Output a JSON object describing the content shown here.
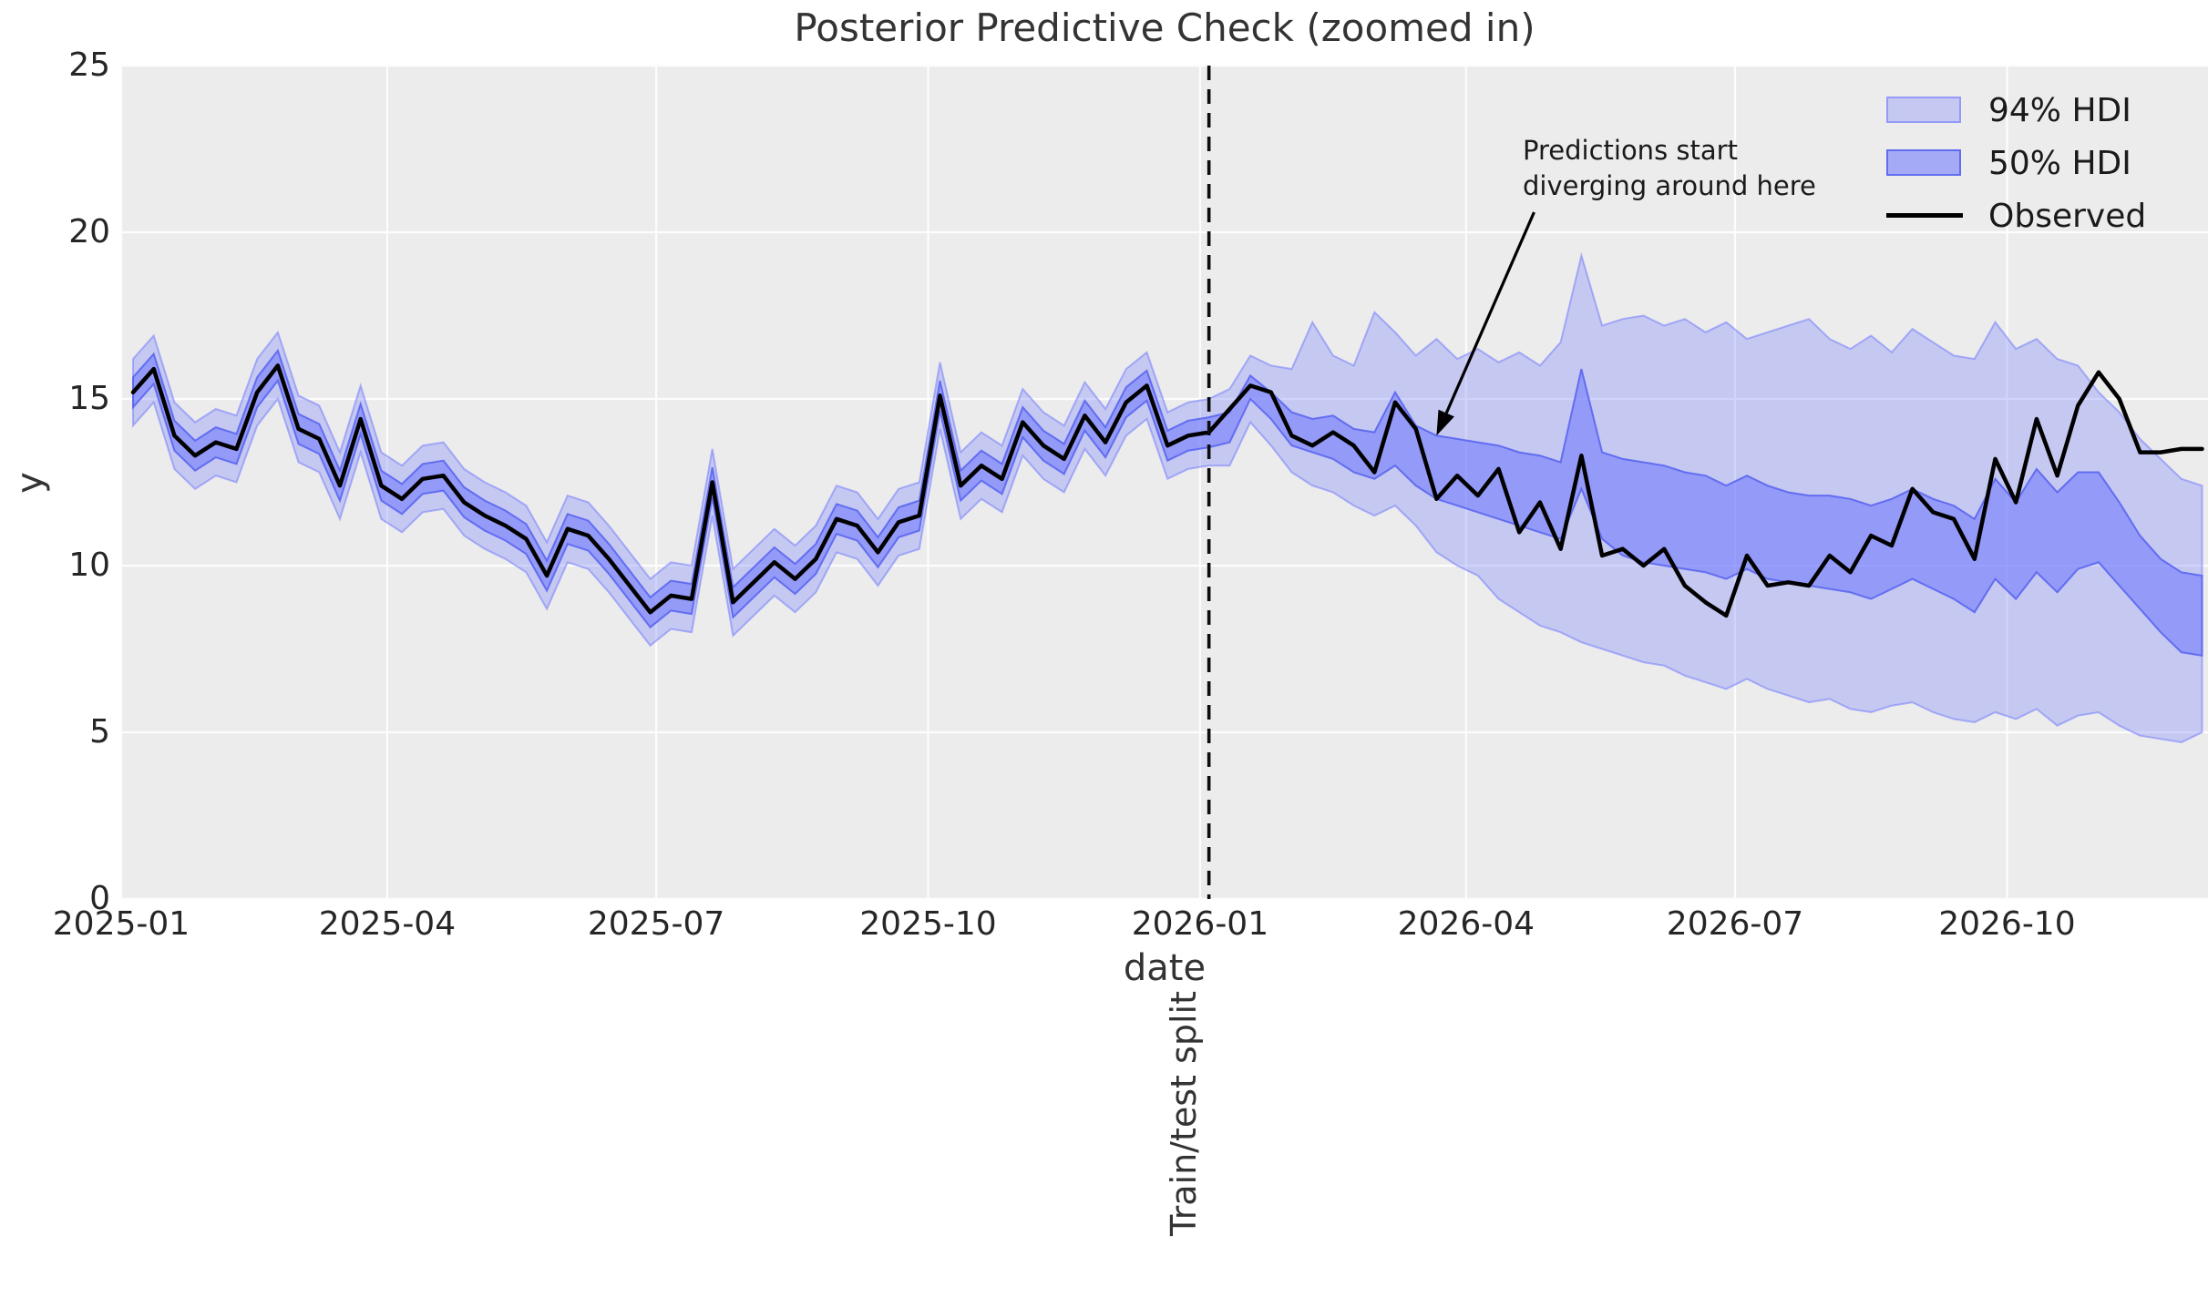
{
  "title": "Posterior Predictive Check (zoomed in)",
  "xlabel": "date",
  "ylabel": "y",
  "split_label": "Train/test split",
  "annotation": {
    "text_lines": [
      "Predictions start",
      "diverging around here"
    ],
    "arrow": {
      "from_day": 478,
      "from_y": 20.6,
      "to_day": 445,
      "to_y": 13.9
    }
  },
  "legend": {
    "items": [
      {
        "label": "94% HDI",
        "swatch": "hdi94"
      },
      {
        "label": "50% HDI",
        "swatch": "hdi50"
      },
      {
        "label": "Observed",
        "swatch": "line"
      }
    ]
  },
  "colors": {
    "plot_bg": "#ececec",
    "grid": "#fdfdfd",
    "hdi_base": "#6a74fd",
    "hdi94_fill": "rgba(106,116,253,0.30)",
    "hdi94_edge": "rgba(106,116,253,0.50)",
    "hdi50_fill": "rgba(106,116,253,0.55)",
    "hdi50_edge": "rgba(80,92,240,0.80)",
    "observed": "#000000",
    "split_line": "#0d0d0d",
    "text": "#262626"
  },
  "axis": {
    "y_ticks": [
      0,
      5,
      10,
      15,
      20,
      25
    ],
    "x_ticks": [
      {
        "label": "2025-01",
        "day": 0
      },
      {
        "label": "2025-04",
        "day": 90
      },
      {
        "label": "2025-07",
        "day": 181
      },
      {
        "label": "2025-10",
        "day": 273
      },
      {
        "label": "2026-01",
        "day": 365
      },
      {
        "label": "2026-04",
        "day": 455
      },
      {
        "label": "2026-07",
        "day": 546
      },
      {
        "label": "2026-10",
        "day": 638
      }
    ]
  },
  "chart_data": {
    "type": "line",
    "title": "Posterior Predictive Check (zoomed in)",
    "xlabel": "date",
    "ylabel": "y",
    "ylim": [
      0,
      25
    ],
    "xlim_days": [
      0,
      706
    ],
    "x_start_day": 4,
    "step_days": 7,
    "split_day": 368,
    "n_points": 101,
    "n_train": 53,
    "observed": [
      15.2,
      15.9,
      13.9,
      13.3,
      13.7,
      13.5,
      15.2,
      16.0,
      14.1,
      13.8,
      12.4,
      14.4,
      12.4,
      12.0,
      12.6,
      12.7,
      11.9,
      11.5,
      11.2,
      10.8,
      9.7,
      11.1,
      10.9,
      10.2,
      9.4,
      8.6,
      9.1,
      9.0,
      12.5,
      8.9,
      9.5,
      10.1,
      9.6,
      10.2,
      11.4,
      11.2,
      10.4,
      11.3,
      11.5,
      15.1,
      12.4,
      13.0,
      12.6,
      14.3,
      13.6,
      13.2,
      14.5,
      13.7,
      14.9,
      15.4,
      13.6,
      13.9,
      14.0,
      14.7,
      15.4,
      15.2,
      13.9,
      13.6,
      14.0,
      13.6,
      12.8,
      14.9,
      14.1,
      12.0,
      12.7,
      12.1,
      12.9,
      11.0,
      11.9,
      10.5,
      13.3,
      10.3,
      10.5,
      10.0,
      10.5,
      9.4,
      8.9,
      8.5,
      10.3,
      9.4,
      9.5,
      9.4,
      10.3,
      9.8,
      10.9,
      10.6,
      12.3,
      11.6,
      11.4,
      10.2,
      13.2,
      11.9,
      14.4,
      12.7,
      14.8,
      15.8,
      15.0,
      13.4,
      13.4,
      13.5,
      13.5
    ],
    "train_band_halfwidth": {
      "hdi50": 0.45,
      "hdi94": 1.0
    },
    "test_hdi94_lo": [
      13.0,
      14.3,
      13.6,
      12.8,
      12.4,
      12.2,
      11.8,
      11.5,
      11.8,
      11.2,
      10.4,
      10.0,
      9.7,
      9.0,
      8.6,
      8.2,
      8.0,
      7.7,
      7.5,
      7.3,
      7.1,
      7.0,
      6.7,
      6.5,
      6.3,
      6.6,
      6.3,
      6.1,
      5.9,
      6.0,
      5.7,
      5.6,
      5.8,
      5.9,
      5.6,
      5.4,
      5.3,
      5.6,
      5.4,
      5.7,
      5.2,
      5.5,
      5.6,
      5.2,
      4.9,
      4.8,
      4.7,
      5.0
    ],
    "test_hdi50_lo": [
      13.7,
      15.0,
      14.4,
      13.6,
      13.4,
      13.2,
      12.8,
      12.6,
      13.0,
      12.4,
      12.0,
      11.8,
      11.6,
      11.4,
      11.2,
      11.0,
      10.8,
      12.3,
      10.8,
      10.3,
      10.1,
      10.0,
      9.9,
      9.8,
      9.6,
      9.9,
      9.6,
      9.5,
      9.4,
      9.3,
      9.2,
      9.0,
      9.3,
      9.6,
      9.3,
      9.0,
      8.6,
      9.6,
      9.0,
      9.8,
      9.2,
      9.9,
      10.1,
      9.4,
      8.7,
      8.0,
      7.4,
      7.3
    ],
    "test_hdi50_hi": [
      14.6,
      15.7,
      15.2,
      14.6,
      14.4,
      14.5,
      14.1,
      14.0,
      15.2,
      14.2,
      13.9,
      13.8,
      13.7,
      13.6,
      13.4,
      13.3,
      13.1,
      15.9,
      13.4,
      13.2,
      13.1,
      13.0,
      12.8,
      12.7,
      12.4,
      12.7,
      12.4,
      12.2,
      12.1,
      12.1,
      12.0,
      11.8,
      12.0,
      12.3,
      12.0,
      11.8,
      11.4,
      12.6,
      11.9,
      12.9,
      12.2,
      12.8,
      12.8,
      11.9,
      10.9,
      10.2,
      9.8,
      9.7
    ],
    "test_hdi94_hi": [
      15.3,
      16.3,
      16.0,
      15.9,
      17.3,
      16.3,
      16.0,
      17.6,
      17.0,
      16.3,
      16.8,
      16.2,
      16.5,
      16.1,
      16.4,
      16.0,
      16.7,
      19.3,
      17.2,
      17.4,
      17.5,
      17.2,
      17.4,
      17.0,
      17.3,
      16.8,
      17.0,
      17.2,
      17.4,
      16.8,
      16.5,
      16.9,
      16.4,
      17.1,
      16.7,
      16.3,
      16.2,
      17.3,
      16.5,
      16.8,
      16.2,
      16.0,
      15.2,
      14.6,
      13.8,
      13.2,
      12.6,
      12.4
    ],
    "legend_entries": [
      "94% HDI",
      "50% HDI",
      "Observed"
    ],
    "grid": true,
    "legend_position": "upper right"
  }
}
